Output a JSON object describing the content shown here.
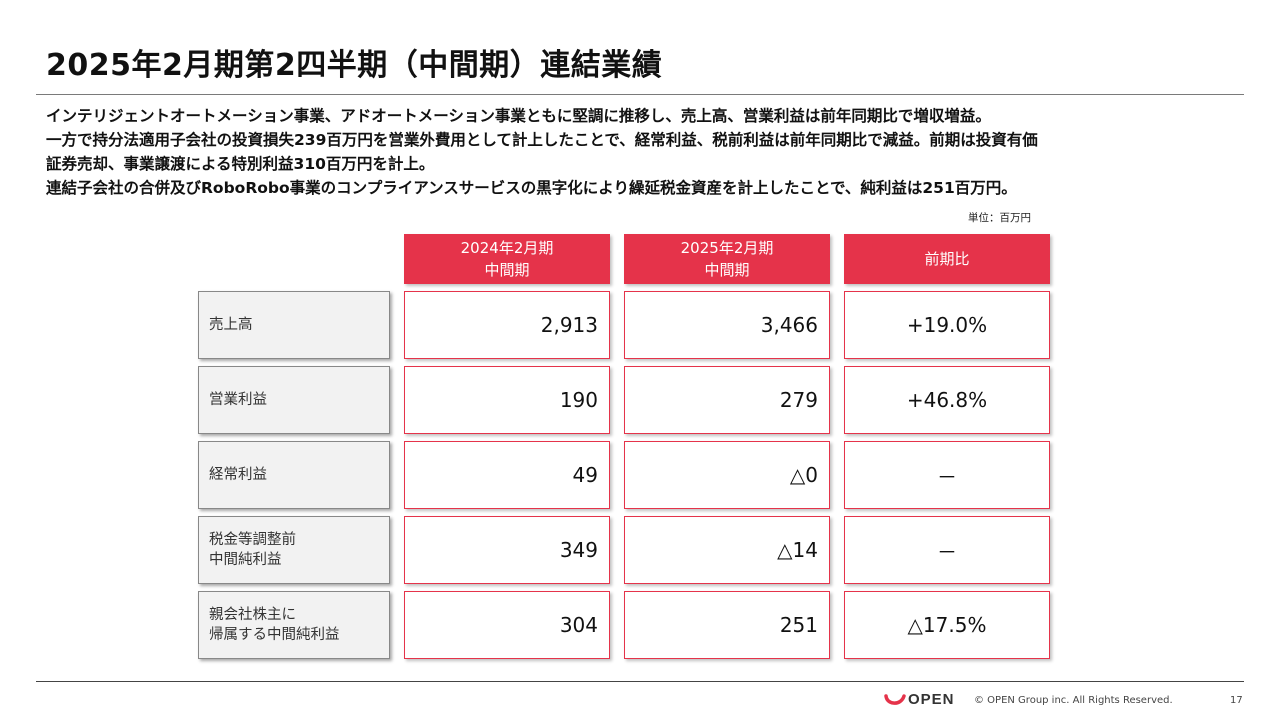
{
  "title": "2025年2月期第2四半期（中間期）連結業績",
  "summary": [
    "インテリジェントオートメーション事業、アドオートメーション事業ともに堅調に推移し、売上高、営業利益は前年同期比で増収増益。",
    "一方で持分法適用子会社の投資損失239百万円を営業外費用として計上したことで、経常利益、税前利益は前年同期比で減益。前期は投資有価",
    "証券売却、事業譲渡による特別利益310百万円を計上。",
    "連結子会社の合併及びRoboRobo事業のコンプライアンスサービスの黒字化により繰延税金資産を計上したことで、純利益は251百万円。"
  ],
  "unit": "単位：百万円",
  "table": {
    "headers": [
      "2024年2月期\n中間期",
      "2025年2月期\n中間期",
      "前期比"
    ],
    "rows": [
      {
        "label": "売上高",
        "prev": "2,913",
        "curr": "3,466",
        "change": "+19.0%"
      },
      {
        "label": "営業利益",
        "prev": "190",
        "curr": "279",
        "change": "+46.8%"
      },
      {
        "label": "経常利益",
        "prev": "49",
        "curr": "△0",
        "change": "－"
      },
      {
        "label": "税金等調整前\n中間純利益",
        "prev": "349",
        "curr": "△14",
        "change": "－"
      },
      {
        "label": "親会社株主に\n帰属する中間純利益",
        "prev": "304",
        "curr": "251",
        "change": "△17.5%"
      }
    ]
  },
  "footer": {
    "logo": "OPEN",
    "logo_color": "#e5334a",
    "copyright": "© OPEN Group inc. All Rights Reserved.",
    "page": "17"
  },
  "colors": {
    "accent": "#e5334a",
    "label_bg": "#f2f2f2"
  }
}
